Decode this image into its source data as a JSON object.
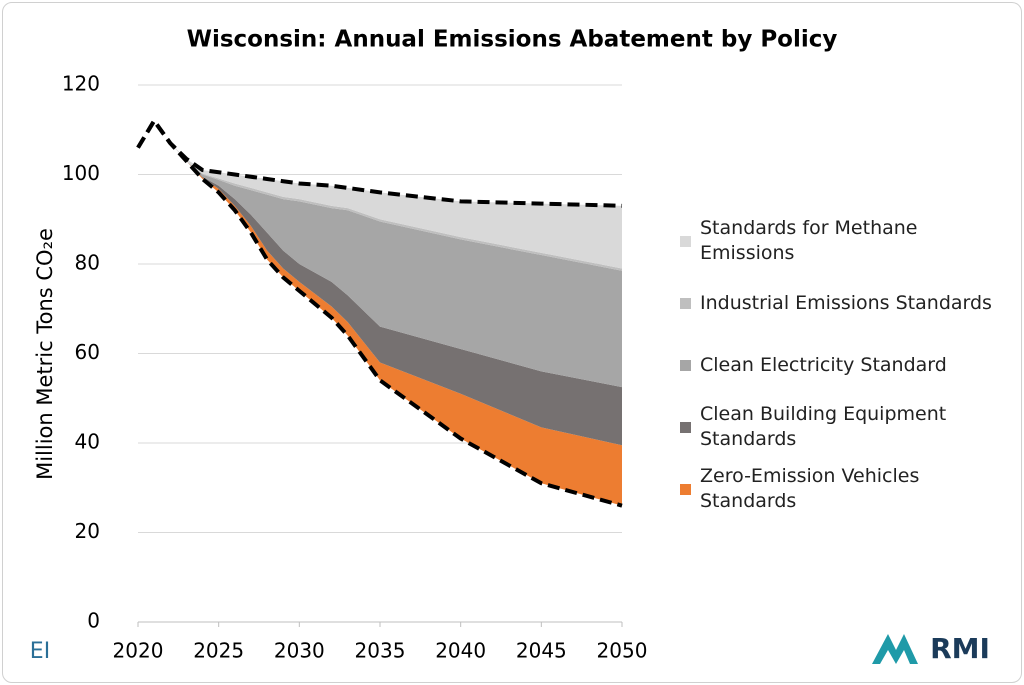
{
  "chart_data": {
    "type": "stacked_area",
    "title": "Wisconsin: Annual Emissions Abatement by Policy",
    "y_label": "Million Metric Tons CO₂e",
    "x": [
      2020,
      2021,
      2022,
      2023,
      2024,
      2025,
      2026,
      2027,
      2028,
      2029,
      2030,
      2032,
      2033,
      2035,
      2040,
      2045,
      2050
    ],
    "xlim": [
      2020,
      2050
    ],
    "xticks": [
      2020,
      2025,
      2030,
      2035,
      2040,
      2045,
      2050
    ],
    "ylim": [
      0,
      120
    ],
    "yticks": [
      0,
      20,
      40,
      60,
      80,
      100,
      120
    ],
    "grid": true,
    "legend": "right",
    "base": {
      "style": "dashed",
      "color": "#000000",
      "values": [
        106,
        112,
        107,
        103,
        99,
        96,
        92,
        87,
        81,
        77,
        74,
        68,
        64,
        54,
        41,
        31,
        26
      ]
    },
    "top_line": {
      "style": "dashed",
      "color": "#000000",
      "values": [
        106,
        112,
        107,
        103.5,
        101,
        100.5,
        100,
        99.5,
        99,
        98.5,
        98,
        97.5,
        97,
        96,
        94,
        93.5,
        93
      ]
    },
    "series": [
      {
        "name": "Standards for Methane Emissions",
        "color": "#d9d9d9",
        "values": [
          0,
          0,
          0,
          0.5,
          0.8,
          1.4,
          2,
          2.5,
          3,
          3.5,
          3.5,
          4.5,
          4.5,
          6,
          8,
          11,
          14
        ]
      },
      {
        "name": "Industrial Emissions Standards",
        "color": "#bfbfbf",
        "values": [
          0,
          0,
          0,
          0,
          0.2,
          0.3,
          0.5,
          0.5,
          0.5,
          0.5,
          0.5,
          0.5,
          0.5,
          0.5,
          0.5,
          0.5,
          0.5
        ]
      },
      {
        "name": "Clean Electricity Standard",
        "color": "#a6a6a6",
        "values": [
          0,
          0,
          0,
          0,
          0.5,
          1.3,
          3,
          5.5,
          8.5,
          11.5,
          14,
          16.5,
          19,
          23.5,
          24.5,
          26,
          26
        ]
      },
      {
        "name": "Clean Building Equipment Standards",
        "color": "#767171",
        "values": [
          0,
          0,
          0,
          0,
          0.2,
          0.7,
          1.5,
          2.5,
          4,
          4,
          4,
          5.5,
          6,
          8,
          10,
          12.5,
          13
        ]
      },
      {
        "name": "Zero-Emission Vehicles Standards",
        "color": "#ed7d31",
        "values": [
          0,
          0,
          0,
          0,
          0.3,
          0.8,
          1,
          1.5,
          2,
          2,
          2,
          2.5,
          3,
          4,
          10,
          12.5,
          13.5
        ]
      }
    ]
  },
  "logos": {
    "left": "EI",
    "right": "RMI"
  }
}
